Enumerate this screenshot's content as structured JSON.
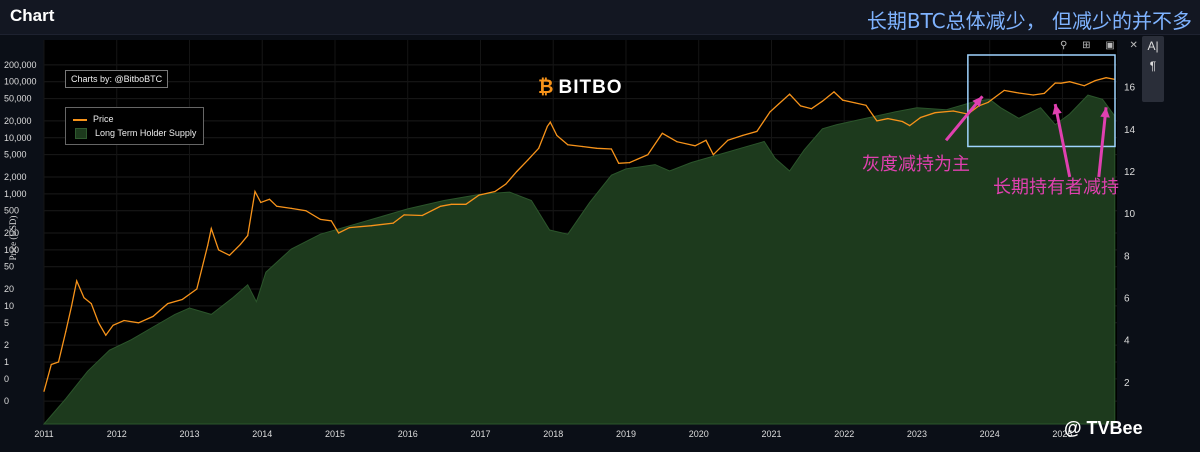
{
  "app": {
    "title": "Chart"
  },
  "headline": "长期BTC总体减少， 但减少的并不多",
  "credit": "Charts by: @BitboBTC",
  "brand": {
    "mark": "₿",
    "name": "BITBO"
  },
  "legend": {
    "price_label": "Price",
    "supply_label": "Long Term Holder Supply"
  },
  "toolbar": {
    "text_tool": "A|",
    "paragraph_tool": "¶",
    "modebar_icons": "⚲ ⊞ ▣ ✕"
  },
  "annotations": [
    {
      "text": "灰度减持为主"
    },
    {
      "text": "长期持有者减持"
    }
  ],
  "watermark": "@ TVBee",
  "chart_data": {
    "type": "line",
    "colors": {
      "price": "#f7931a",
      "supply_fill": "#1d3a1d",
      "supply_edge": "#2b552b",
      "highlight_box": "#9fd4ff",
      "arrow": "#e040b0"
    },
    "yaxis_left": {
      "title": "Price (USD)",
      "scale": "log",
      "tick_labels": [
        "200,000",
        "100,000",
        "50,000",
        "20,000",
        "10,000",
        "5,000",
        "2,000",
        "1,000",
        "500",
        "200",
        "100",
        "50",
        "20",
        "10",
        "5",
        "2",
        "1",
        "0",
        "0"
      ],
      "tick_values": [
        200000,
        100000,
        50000,
        20000,
        10000,
        5000,
        2000,
        1000,
        500,
        200,
        100,
        50,
        20,
        10,
        5,
        2,
        1,
        0.5,
        0.2
      ],
      "range": [
        0.1,
        300000
      ]
    },
    "yaxis_right": {
      "tick_labels": [
        "16",
        "14",
        "12",
        "10",
        "8",
        "6",
        "4",
        "2"
      ],
      "tick_values": [
        16,
        14,
        12,
        10,
        8,
        6,
        4,
        2
      ],
      "range": [
        0,
        17.5
      ]
    },
    "xaxis": {
      "tick_labels": [
        "2011",
        "2012",
        "2013",
        "2014",
        "2015",
        "2016",
        "2017",
        "2018",
        "2019",
        "2020",
        "2021",
        "2022",
        "2023",
        "2024",
        "2025"
      ],
      "range": [
        2011,
        2025.75
      ]
    },
    "series": [
      {
        "name": "Price",
        "axis": "left",
        "points": [
          [
            2011.0,
            0.3
          ],
          [
            2011.1,
            0.9
          ],
          [
            2011.2,
            1.0
          ],
          [
            2011.3,
            3.5
          ],
          [
            2011.38,
            10
          ],
          [
            2011.45,
            28
          ],
          [
            2011.55,
            14
          ],
          [
            2011.65,
            11
          ],
          [
            2011.75,
            5
          ],
          [
            2011.85,
            3
          ],
          [
            2011.95,
            4.5
          ],
          [
            2012.1,
            5.5
          ],
          [
            2012.3,
            5
          ],
          [
            2012.5,
            6.5
          ],
          [
            2012.7,
            11
          ],
          [
            2012.9,
            13
          ],
          [
            2013.1,
            20
          ],
          [
            2013.25,
            120
          ],
          [
            2013.3,
            240
          ],
          [
            2013.4,
            100
          ],
          [
            2013.55,
            80
          ],
          [
            2013.7,
            125
          ],
          [
            2013.8,
            180
          ],
          [
            2013.9,
            1100
          ],
          [
            2013.98,
            700
          ],
          [
            2014.1,
            800
          ],
          [
            2014.2,
            600
          ],
          [
            2014.4,
            550
          ],
          [
            2014.6,
            500
          ],
          [
            2014.8,
            350
          ],
          [
            2014.95,
            330
          ],
          [
            2015.05,
            200
          ],
          [
            2015.2,
            250
          ],
          [
            2015.5,
            270
          ],
          [
            2015.8,
            300
          ],
          [
            2015.95,
            420
          ],
          [
            2016.2,
            410
          ],
          [
            2016.45,
            600
          ],
          [
            2016.6,
            650
          ],
          [
            2016.8,
            650
          ],
          [
            2016.98,
            950
          ],
          [
            2017.2,
            1100
          ],
          [
            2017.35,
            1500
          ],
          [
            2017.5,
            2500
          ],
          [
            2017.65,
            4000
          ],
          [
            2017.8,
            6500
          ],
          [
            2017.92,
            16000
          ],
          [
            2017.96,
            19000
          ],
          [
            2018.05,
            11000
          ],
          [
            2018.2,
            7500
          ],
          [
            2018.4,
            7000
          ],
          [
            2018.6,
            6500
          ],
          [
            2018.8,
            6300
          ],
          [
            2018.9,
            3500
          ],
          [
            2019.05,
            3600
          ],
          [
            2019.3,
            5000
          ],
          [
            2019.5,
            12000
          ],
          [
            2019.7,
            8500
          ],
          [
            2019.95,
            7200
          ],
          [
            2020.1,
            9000
          ],
          [
            2020.2,
            5000
          ],
          [
            2020.4,
            9000
          ],
          [
            2020.6,
            11000
          ],
          [
            2020.8,
            13000
          ],
          [
            2020.98,
            29000
          ],
          [
            2021.1,
            40000
          ],
          [
            2021.25,
            60000
          ],
          [
            2021.4,
            37000
          ],
          [
            2021.55,
            33000
          ],
          [
            2021.7,
            45000
          ],
          [
            2021.86,
            66000
          ],
          [
            2021.98,
            47000
          ],
          [
            2022.15,
            42000
          ],
          [
            2022.3,
            38000
          ],
          [
            2022.45,
            20000
          ],
          [
            2022.6,
            22000
          ],
          [
            2022.8,
            19500
          ],
          [
            2022.9,
            16500
          ],
          [
            2023.05,
            23000
          ],
          [
            2023.25,
            28000
          ],
          [
            2023.5,
            30000
          ],
          [
            2023.7,
            26500
          ],
          [
            2023.85,
            37000
          ],
          [
            2023.98,
            43000
          ],
          [
            2024.2,
            70000
          ],
          [
            2024.4,
            63000
          ],
          [
            2024.6,
            58000
          ],
          [
            2024.75,
            62000
          ],
          [
            2024.9,
            95000
          ],
          [
            2024.98,
            94000
          ],
          [
            2025.1,
            100000
          ],
          [
            2025.3,
            85000
          ],
          [
            2025.45,
            105000
          ],
          [
            2025.6,
            118000
          ],
          [
            2025.72,
            110000
          ]
        ]
      },
      {
        "name": "Long Term Holder Supply",
        "axis": "right",
        "points": [
          [
            2011.0,
            0
          ],
          [
            2011.3,
            1.2
          ],
          [
            2011.6,
            2.5
          ],
          [
            2011.9,
            3.5
          ],
          [
            2012.2,
            4.0
          ],
          [
            2012.5,
            4.6
          ],
          [
            2012.8,
            5.2
          ],
          [
            2013.0,
            5.5
          ],
          [
            2013.3,
            5.2
          ],
          [
            2013.6,
            6.0
          ],
          [
            2013.8,
            6.6
          ],
          [
            2013.92,
            5.8
          ],
          [
            2014.05,
            7.2
          ],
          [
            2014.4,
            8.3
          ],
          [
            2014.8,
            9.0
          ],
          [
            2015.2,
            9.4
          ],
          [
            2015.6,
            9.8
          ],
          [
            2016.0,
            10.2
          ],
          [
            2016.5,
            10.6
          ],
          [
            2017.0,
            10.9
          ],
          [
            2017.4,
            11.0
          ],
          [
            2017.7,
            10.6
          ],
          [
            2017.95,
            9.2
          ],
          [
            2018.2,
            9.0
          ],
          [
            2018.5,
            10.5
          ],
          [
            2018.8,
            11.8
          ],
          [
            2019.0,
            12.1
          ],
          [
            2019.4,
            12.3
          ],
          [
            2019.6,
            12.0
          ],
          [
            2019.9,
            12.4
          ],
          [
            2020.3,
            12.8
          ],
          [
            2020.7,
            13.2
          ],
          [
            2020.9,
            13.4
          ],
          [
            2021.05,
            12.6
          ],
          [
            2021.25,
            12.0
          ],
          [
            2021.45,
            13.0
          ],
          [
            2021.7,
            14.0
          ],
          [
            2021.9,
            14.2
          ],
          [
            2022.3,
            14.5
          ],
          [
            2022.7,
            14.8
          ],
          [
            2023.0,
            15.0
          ],
          [
            2023.4,
            14.9
          ],
          [
            2023.8,
            15.3
          ],
          [
            2024.0,
            15.4
          ],
          [
            2024.15,
            15.0
          ],
          [
            2024.4,
            14.5
          ],
          [
            2024.7,
            15.0
          ],
          [
            2024.9,
            14.2
          ],
          [
            2025.1,
            14.7
          ],
          [
            2025.35,
            15.6
          ],
          [
            2025.55,
            15.4
          ],
          [
            2025.72,
            14.6
          ]
        ]
      }
    ],
    "highlight_box": {
      "x_range": [
        2023.7,
        2025.8
      ],
      "price_range": [
        7000,
        300000
      ]
    },
    "arrows": [
      {
        "from": [
          2023.4,
          9000
        ],
        "to": [
          2023.9,
          55000
        ]
      },
      {
        "from": [
          2025.1,
          2000
        ],
        "to": [
          2024.9,
          40000
        ]
      },
      {
        "from": [
          2025.5,
          2000
        ],
        "to": [
          2025.6,
          35000
        ]
      }
    ]
  }
}
